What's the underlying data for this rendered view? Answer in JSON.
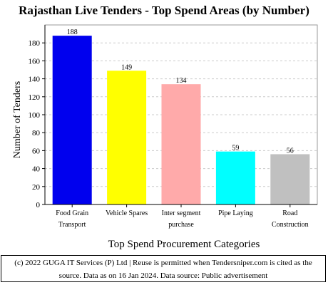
{
  "chart_data": {
    "type": "bar",
    "title": "Rajasthan Live Tenders - Top Spend Areas (by Number)",
    "xlabel": "Top Spend Procurement Categories",
    "ylabel": "Number of Tenders",
    "categories": [
      [
        "Food Grain",
        "Transport"
      ],
      [
        "Vehicle Spares"
      ],
      [
        "Inter segment",
        "purchase"
      ],
      [
        "Pipe Laying"
      ],
      [
        "Road",
        "Construction"
      ]
    ],
    "values": [
      188,
      149,
      134,
      59,
      56
    ],
    "colors": [
      "#0000ee",
      "#ffff00",
      "#ffaaaa",
      "#00ffff",
      "#c0c0c0"
    ],
    "ylim": [
      0,
      200
    ],
    "yticks": [
      0,
      20,
      40,
      60,
      80,
      100,
      120,
      140,
      160,
      180
    ],
    "grid": "horizontal dashed",
    "legend": "none"
  },
  "footer": {
    "line1": "(c) 2022 GUGA IT Services (P) Ltd | Reuse is permitted when Tendersniper.com is cited as the",
    "line2": "source. Data as on 16 Jan 2024. Data source: Public advertisement"
  }
}
